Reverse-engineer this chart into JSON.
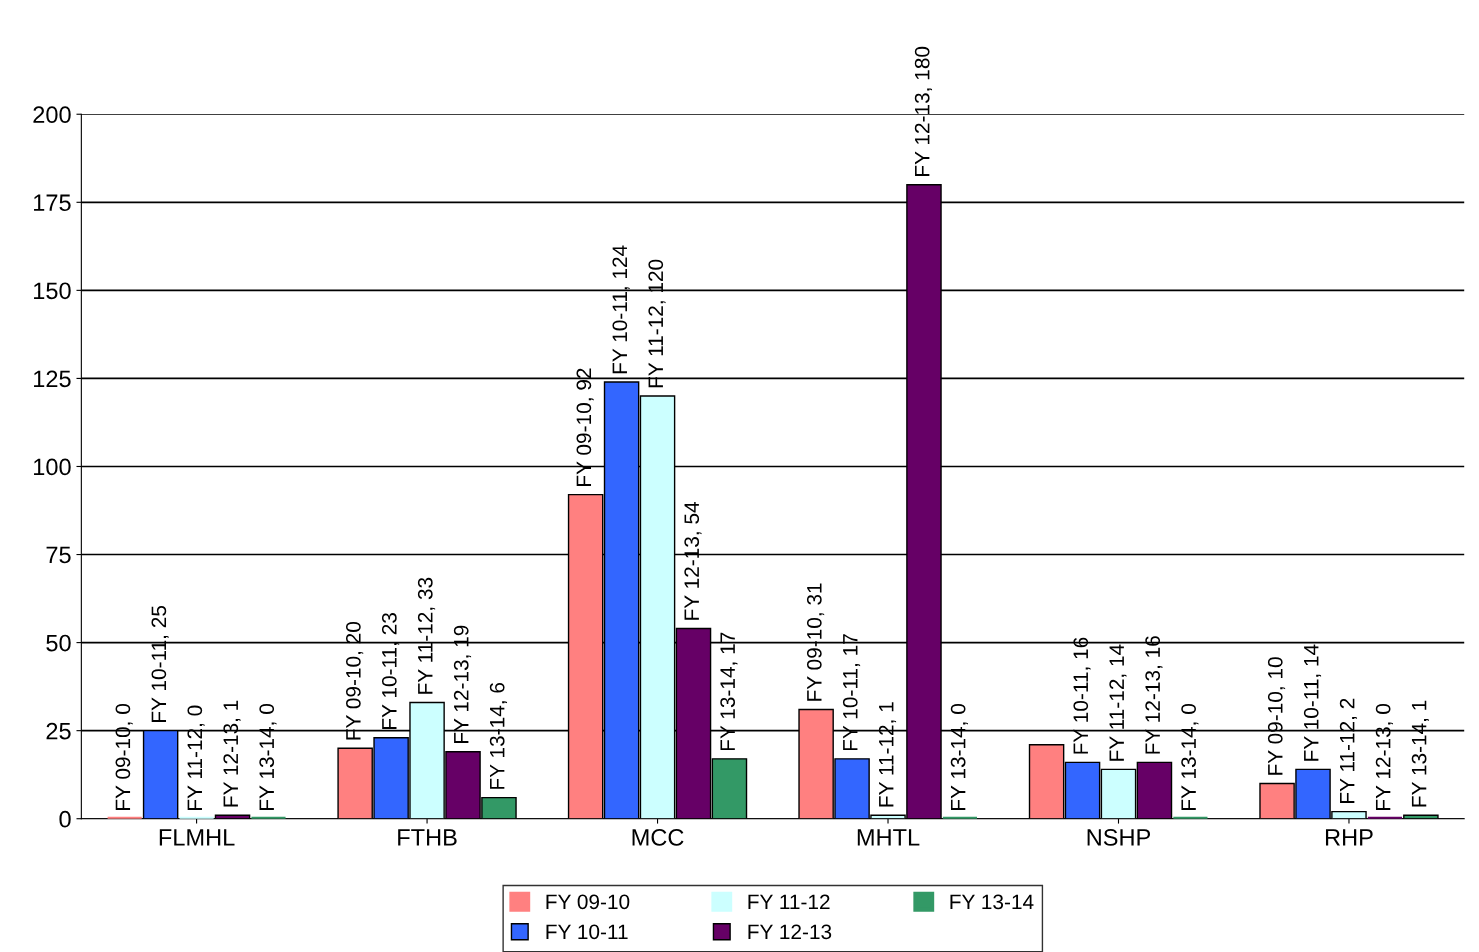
{
  "chart_data": {
    "type": "bar",
    "categories": [
      "FLMHL",
      "FTHB",
      "MCC",
      "MHTL",
      "NSHP",
      "RHP"
    ],
    "series": [
      {
        "name": "FY 09-10",
        "color": "#ff8080",
        "values": [
          0,
          20,
          92,
          31,
          21,
          10
        ],
        "value_labels": [
          "FY 09-10, 0",
          "FY 09-10, 20",
          "FY 09-10, 92",
          "FY 09-10, 31",
          null,
          "FY 09-10, 10"
        ]
      },
      {
        "name": "FY 10-11",
        "color": "#3366ff",
        "values": [
          25,
          23,
          124,
          17,
          16,
          14
        ],
        "value_labels": [
          "FY 10-11, 25",
          "FY 10-11, 23",
          "FY 10-11, 124",
          "FY 10-11, 17",
          "FY 10-11, 16",
          "FY 10-11, 14"
        ]
      },
      {
        "name": "FY 11-12",
        "color": "#ccffff",
        "values": [
          0,
          33,
          120,
          1,
          14,
          2
        ],
        "value_labels": [
          "FY 11-12, 0",
          "FY 11-12, 33",
          "FY 11-12, 120",
          "FY 11-12, 1",
          "FY 11-12, 14",
          "FY 11-12, 2"
        ]
      },
      {
        "name": "FY 12-13",
        "color": "#660066",
        "values": [
          1,
          19,
          54,
          180,
          16,
          0
        ],
        "value_labels": [
          "FY 12-13, 1",
          "FY 12-13, 19",
          "FY 12-13, 54",
          "FY 12-13, 180",
          "FY 12-13, 16",
          "FY 12-13, 0"
        ]
      },
      {
        "name": "FY 13-14",
        "color": "#339966",
        "values": [
          0,
          6,
          17,
          0,
          0,
          1
        ],
        "value_labels": [
          "FY 13-14, 0",
          "FY 13-14, 6",
          "FY 13-14, 17",
          "FY 13-14, 0",
          "FY 13-14, 0",
          "FY 13-14, 1"
        ]
      }
    ],
    "ylim": [
      0,
      200
    ],
    "yticks": [
      0,
      25,
      50,
      75,
      100,
      125,
      150,
      175,
      200
    ],
    "grid": "y",
    "legend": "bottom"
  }
}
